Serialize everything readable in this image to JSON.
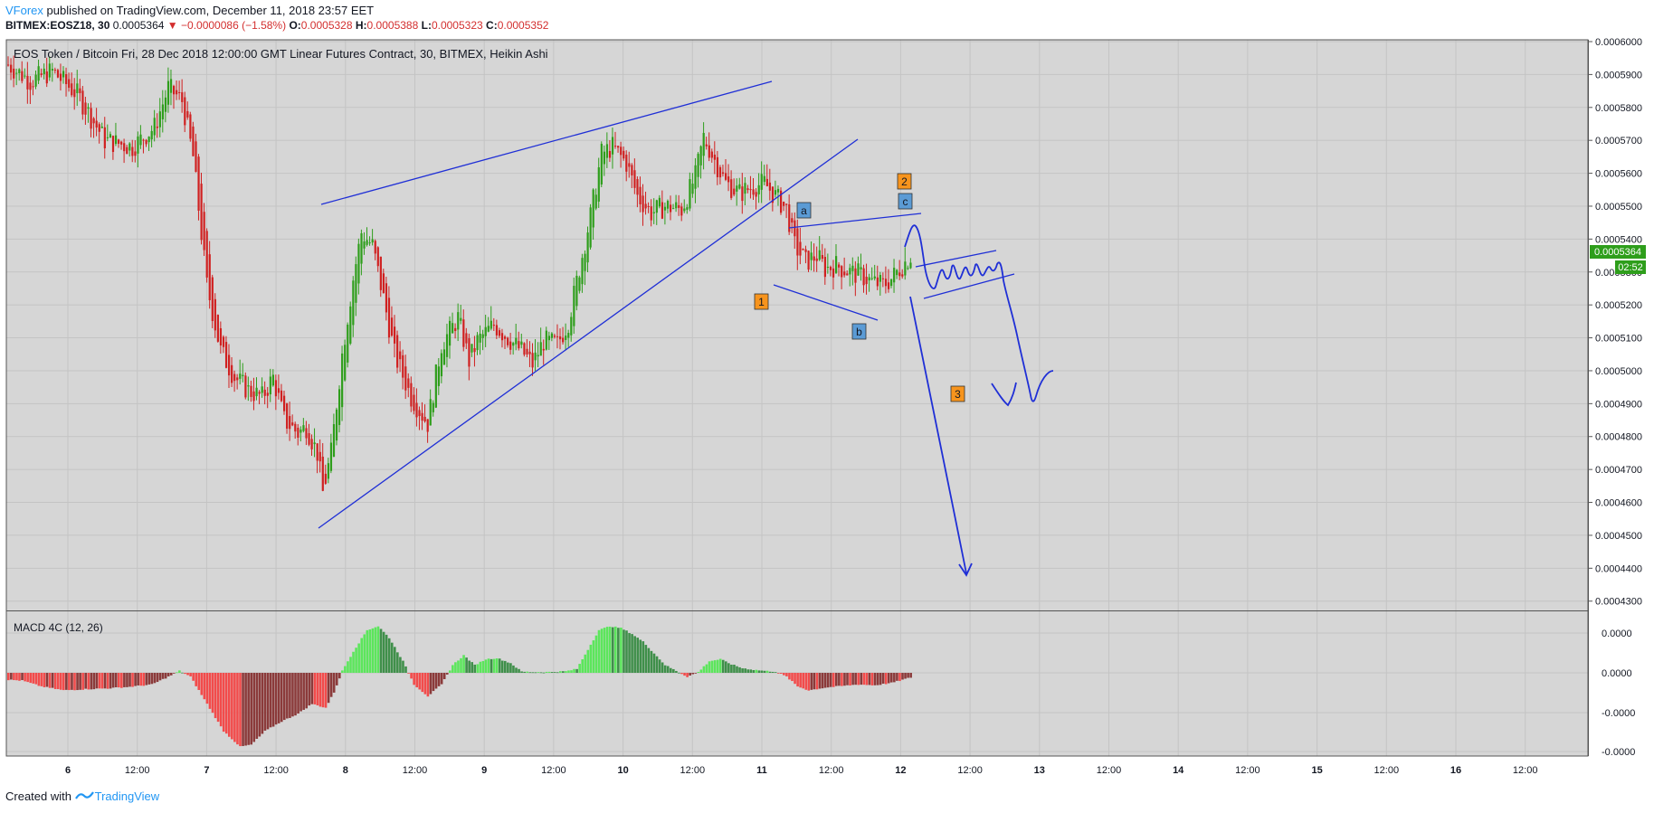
{
  "header": {
    "author": "VForex",
    "published": "published on TradingView.com, December 11, 2018 23:57 EET",
    "symbol": "BITMEX:EOSZ18, 30",
    "price": "0.0005364",
    "change": "▼ −0.0000086 (−1.58%)",
    "open_label": "O:",
    "open": "0.0005328",
    "high_label": "H:",
    "high": "0.0005388",
    "low_label": "L:",
    "low": "0.0005323",
    "close_label": "C:",
    "close": "0.0005352"
  },
  "chart_title": "EOS Token / Bitcoin Fri, 28 Dec 2018 12:00:00 GMT Linear Futures Contract, 30, BITMEX, Heikin Ashi",
  "macd_title": "MACD 4C (12, 26)",
  "price_badge": "0.0005364",
  "timer_badge": "02:52",
  "footer": {
    "created": "Created with",
    "brand": "TradingView"
  },
  "colors": {
    "up": "#2e9e1b",
    "down": "#d02020",
    "drawing": "#1f2fd6",
    "wave_orange": "#f7941d",
    "wave_blue": "#5b9bd5",
    "hist_light_green": "#5ce65c",
    "hist_dark_green": "#3f8f4a",
    "hist_light_red": "#f24b4b",
    "hist_dark_red": "#8b3a3a"
  },
  "chart_data": [
    {
      "type": "candlestick",
      "title": "EOS Token / Bitcoin Fri, 28 Dec 2018 12:00:00 GMT Linear Futures Contract, 30, BITMEX, Heikin Ashi",
      "ylim": [
        0.000428,
        0.0006
      ],
      "y_ticks": [
        "0.0006000",
        "0.0005900",
        "0.0005800",
        "0.0005700",
        "0.0005600",
        "0.0005500",
        "0.0005400",
        "0.0005300",
        "0.0005200",
        "0.0005100",
        "0.0005000",
        "0.0004900",
        "0.0004800",
        "0.0004700",
        "0.0004600",
        "0.0004500",
        "0.0004400",
        "0.0004300"
      ],
      "x_ticks": [
        "6",
        "12:00",
        "7",
        "12:00",
        "8",
        "12:00",
        "9",
        "12:00",
        "10",
        "12:00",
        "11",
        "12:00",
        "12",
        "12:00",
        "13",
        "12:00",
        "14",
        "12:00",
        "15",
        "12:00",
        "16",
        "12:00"
      ],
      "price_path": [
        [
          0,
          0.000593
        ],
        [
          8,
          0.000588
        ],
        [
          16,
          0.000591
        ],
        [
          25,
          0.000584
        ],
        [
          35,
          0.00057
        ],
        [
          45,
          0.000568
        ],
        [
          53,
          0.000574
        ],
        [
          58,
          0.000586
        ],
        [
          63,
          0.000582
        ],
        [
          67,
          0.000565
        ],
        [
          72,
          0.000526
        ],
        [
          77,
          0.000506
        ],
        [
          82,
          0.000498
        ],
        [
          87,
          0.000494
        ],
        [
          92,
          0.000492
        ],
        [
          96,
          0.000498
        ],
        [
          100,
          0.000485
        ],
        [
          105,
          0.000481
        ],
        [
          108,
          0.000483
        ],
        [
          112,
          0.000475
        ],
        [
          114,
          0.000463
        ],
        [
          117,
          0.000475
        ],
        [
          121,
          0.000505
        ],
        [
          125,
          0.000528
        ],
        [
          128,
          0.000542
        ],
        [
          132,
          0.000538
        ],
        [
          136,
          0.000522
        ],
        [
          140,
          0.000505
        ],
        [
          146,
          0.000492
        ],
        [
          152,
          0.000484
        ],
        [
          157,
          0.000508
        ],
        [
          163,
          0.000516
        ],
        [
          167,
          0.000503
        ],
        [
          170,
          0.000509
        ],
        [
          176,
          0.000514
        ],
        [
          181,
          0.00051
        ],
        [
          186,
          0.000506
        ],
        [
          190,
          0.000502
        ],
        [
          194,
          0.000509
        ],
        [
          199,
          0.000508
        ],
        [
          203,
          0.000515
        ],
        [
          207,
          0.000531
        ],
        [
          211,
          0.000547
        ],
        [
          215,
          0.000566
        ],
        [
          219,
          0.000568
        ],
        [
          224,
          0.000563
        ],
        [
          228,
          0.000553
        ],
        [
          233,
          0.000548
        ],
        [
          238,
          0.00055
        ],
        [
          244,
          0.000549
        ],
        [
          249,
          0.000559
        ],
        [
          252,
          0.000571
        ],
        [
          256,
          0.000564
        ],
        [
          260,
          0.000557
        ],
        [
          265,
          0.000554
        ],
        [
          270,
          0.000556
        ],
        [
          274,
          0.000557
        ],
        [
          278,
          0.000553
        ],
        [
          282,
          0.000549
        ],
        [
          285,
          0.000538
        ],
        [
          289,
          0.000533
        ],
        [
          293,
          0.000535
        ],
        [
          296,
          0.000531
        ],
        [
          300,
          0.000532
        ],
        [
          305,
          0.00053
        ],
        [
          309,
          0.000529
        ],
        [
          313,
          0.000527
        ],
        [
          317,
          0.000526
        ],
        [
          320,
          0.000528
        ],
        [
          324,
          0.000532
        ],
        [
          327,
          0.000535
        ]
      ],
      "annotations": [
        {
          "label": "1",
          "style": "orange"
        },
        {
          "label": "2",
          "style": "orange"
        },
        {
          "label": "3",
          "style": "orange"
        },
        {
          "label": "a",
          "style": "blue"
        },
        {
          "label": "b",
          "style": "blue"
        },
        {
          "label": "c",
          "style": "blue"
        }
      ]
    },
    {
      "type": "bar",
      "title": "MACD 4C (12, 26)",
      "y_ticks": [
        "0.0000",
        "0.0000",
        "-0.0000",
        "-0.0000"
      ],
      "hist_path": [
        [
          0,
          -0.18
        ],
        [
          5,
          -0.2
        ],
        [
          12,
          -0.35
        ],
        [
          20,
          -0.45
        ],
        [
          28,
          -0.42
        ],
        [
          36,
          -0.4
        ],
        [
          44,
          -0.36
        ],
        [
          52,
          -0.3
        ],
        [
          58,
          -0.1
        ],
        [
          62,
          0.05
        ],
        [
          66,
          -0.1
        ],
        [
          72,
          -0.8
        ],
        [
          78,
          -1.5
        ],
        [
          84,
          -1.9
        ],
        [
          88,
          -1.85
        ],
        [
          93,
          -1.5
        ],
        [
          99,
          -1.25
        ],
        [
          105,
          -1.05
        ],
        [
          110,
          -0.8
        ],
        [
          115,
          -0.9
        ],
        [
          118,
          -0.5
        ],
        [
          121,
          0.05
        ],
        [
          125,
          0.55
        ],
        [
          130,
          1.1
        ],
        [
          134,
          1.2
        ],
        [
          138,
          0.9
        ],
        [
          143,
          0.3
        ],
        [
          147,
          -0.3
        ],
        [
          152,
          -0.6
        ],
        [
          157,
          -0.3
        ],
        [
          161,
          0.2
        ],
        [
          165,
          0.45
        ],
        [
          169,
          0.2
        ],
        [
          173,
          0.35
        ],
        [
          177,
          0.38
        ],
        [
          182,
          0.25
        ],
        [
          186,
          0.03
        ],
        [
          190,
          0.02
        ],
        [
          196,
          0.02
        ],
        [
          202,
          0.04
        ],
        [
          206,
          0.1
        ],
        [
          210,
          0.6
        ],
        [
          214,
          1.1
        ],
        [
          218,
          1.2
        ],
        [
          222,
          1.15
        ],
        [
          226,
          1.0
        ],
        [
          230,
          0.8
        ],
        [
          234,
          0.5
        ],
        [
          238,
          0.2
        ],
        [
          242,
          0.05
        ],
        [
          246,
          -0.1
        ],
        [
          250,
          0.02
        ],
        [
          254,
          0.3
        ],
        [
          258,
          0.35
        ],
        [
          262,
          0.22
        ],
        [
          266,
          0.12
        ],
        [
          270,
          0.08
        ],
        [
          274,
          0.05
        ],
        [
          278,
          0.03
        ],
        [
          282,
          -0.1
        ],
        [
          286,
          -0.35
        ],
        [
          290,
          -0.45
        ],
        [
          296,
          -0.38
        ],
        [
          302,
          -0.34
        ],
        [
          308,
          -0.3
        ],
        [
          314,
          -0.32
        ],
        [
          320,
          -0.26
        ],
        [
          324,
          -0.18
        ],
        [
          327,
          -0.12
        ]
      ]
    }
  ]
}
